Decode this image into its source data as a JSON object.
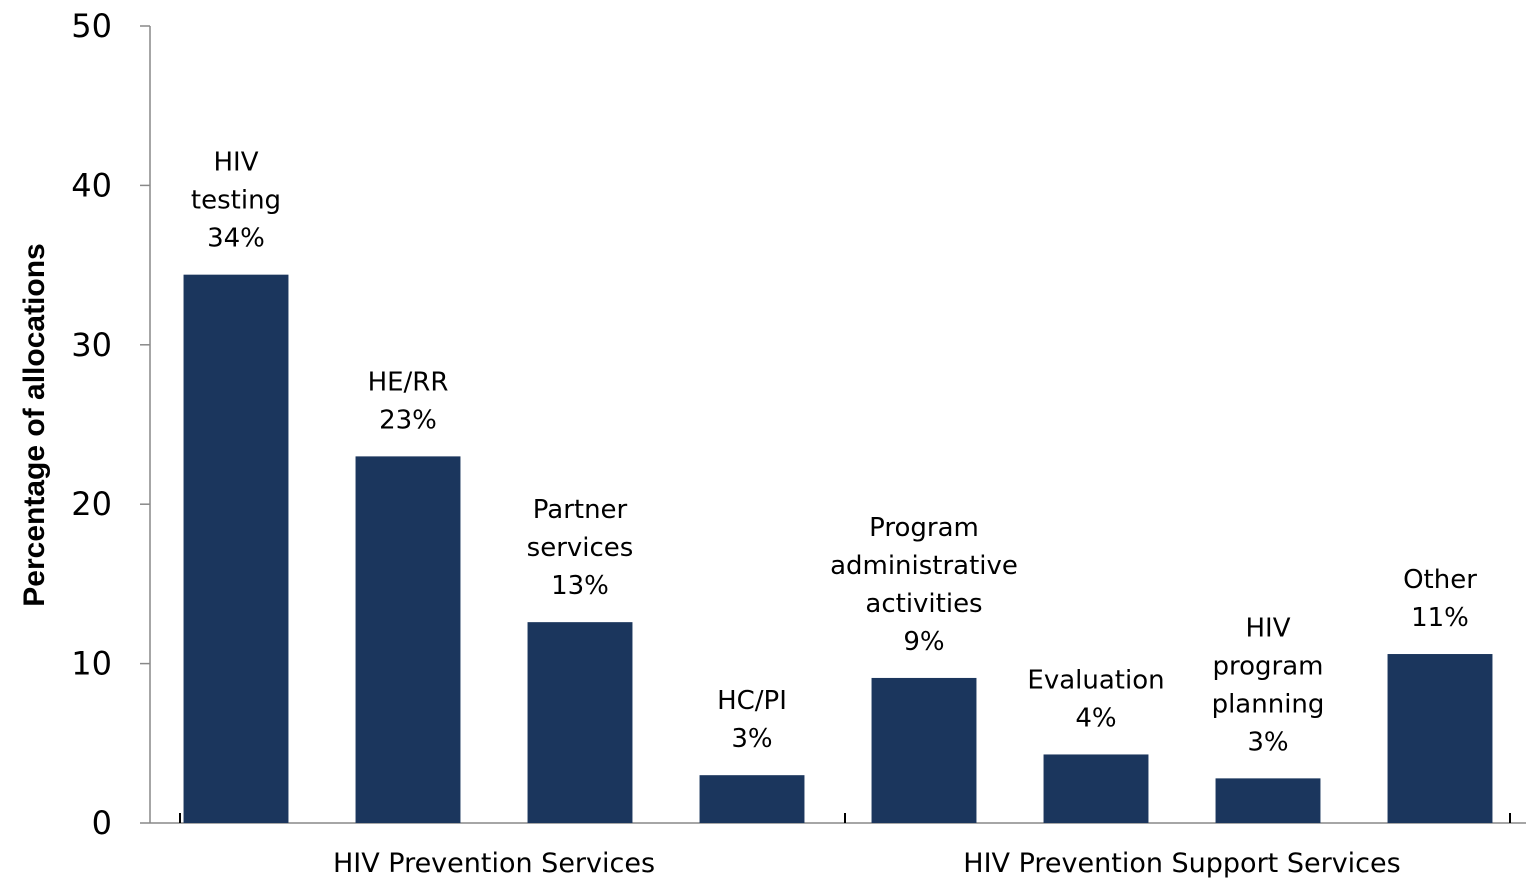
{
  "chart_data": {
    "type": "bar",
    "y_label": "Percentage of allocations",
    "categories": [
      "HIV testing",
      "HE/RR",
      "Partner services",
      "HC/PI",
      "Program administrative activities",
      "Evaluation",
      "HIV program planning",
      "Other"
    ],
    "values": [
      34.4,
      23.0,
      12.6,
      3.0,
      9.1,
      4.3,
      2.8,
      10.6
    ],
    "value_labels": [
      "34%",
      "23%",
      "13%",
      "3%",
      "9%",
      "4%",
      "3%",
      "11%"
    ],
    "groups": [
      {
        "name": "HIV Prevention Services",
        "start": 0,
        "end": 3
      },
      {
        "name": "HIV Prevention Support Services",
        "start": 4,
        "end": 7
      }
    ],
    "color": "#1b365d",
    "ylim": [
      0,
      50
    ],
    "yticks": [
      0,
      10,
      20,
      30,
      40,
      50
    ],
    "grid": false
  }
}
